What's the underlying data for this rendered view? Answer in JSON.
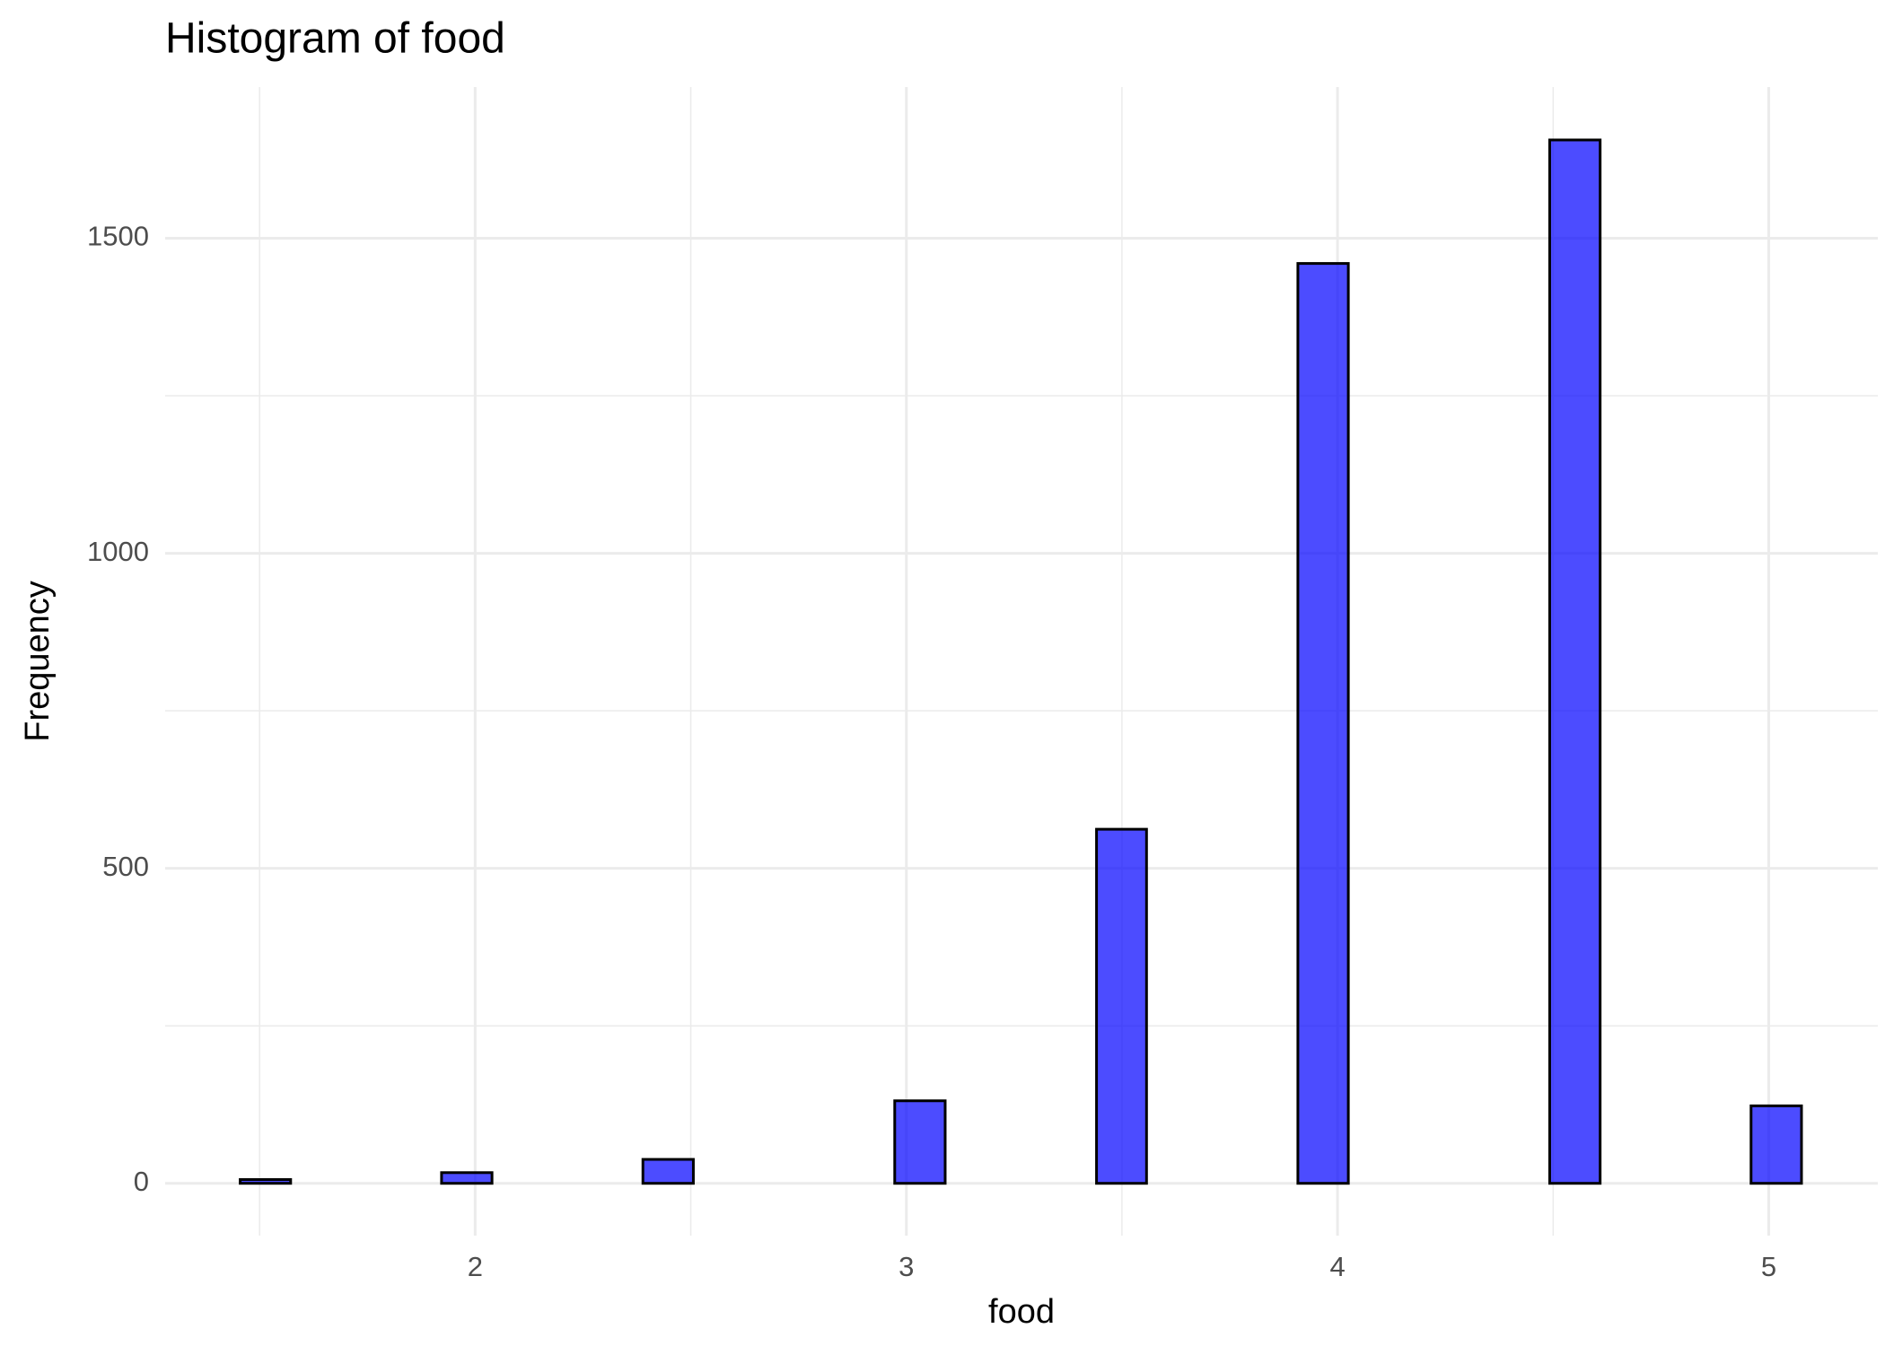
{
  "chart_data": {
    "type": "histogram",
    "title": "Histogram of food",
    "x_label": "food",
    "y_label": "Frequency",
    "bins": [
      1.455,
      1.572,
      1.689,
      1.805,
      1.922,
      2.039,
      2.156,
      2.273,
      2.389,
      2.506,
      2.623,
      2.74,
      2.857,
      2.973,
      3.09,
      3.207,
      3.324,
      3.441,
      3.557,
      3.674,
      3.791,
      3.908,
      4.025,
      4.141,
      4.258,
      4.375,
      4.492,
      4.609,
      4.725,
      4.842,
      4.959,
      5.076
    ],
    "values": [
      6,
      0,
      0,
      0,
      17,
      0,
      0,
      0,
      38,
      0,
      0,
      0,
      0,
      131,
      0,
      0,
      0,
      562,
      0,
      0,
      0,
      1460,
      0,
      0,
      0,
      0,
      1656,
      0,
      0,
      0,
      123
    ],
    "color": "#0000ff",
    "xlim": [
      1.281,
      5.253
    ],
    "ylim": [
      -83,
      1740
    ],
    "xticks": [
      2,
      3,
      4,
      5
    ],
    "yticks": [
      0,
      500,
      1000,
      1500
    ],
    "xminorticks": [
      1.5,
      2.5,
      3.5,
      4.5
    ],
    "yminorticks": [
      250,
      750,
      1250
    ],
    "grid": true
  }
}
